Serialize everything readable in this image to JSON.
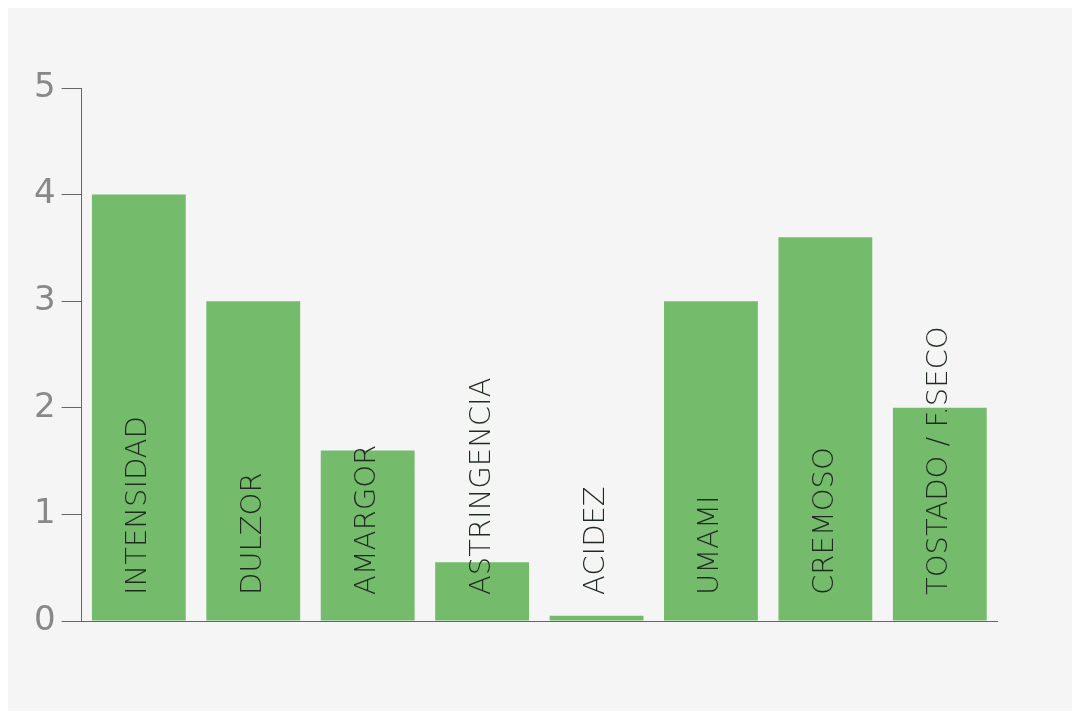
{
  "chart_data": {
    "type": "bar",
    "categories": [
      "INTENSIDAD",
      "DULZOR",
      "AMARGOR",
      "ASTRINGENCIA",
      "ACIDEZ",
      "UMAMI",
      "CREMOSO",
      "TOSTADO / F.SECO"
    ],
    "values": [
      4.0,
      3.0,
      1.6,
      0.55,
      0.05,
      3.0,
      3.6,
      2.0
    ],
    "color": "#74bb6b",
    "ylim": [
      0,
      5
    ],
    "yticks": [
      0,
      1,
      2,
      3,
      4,
      5
    ],
    "grid": false,
    "legend": false
  }
}
